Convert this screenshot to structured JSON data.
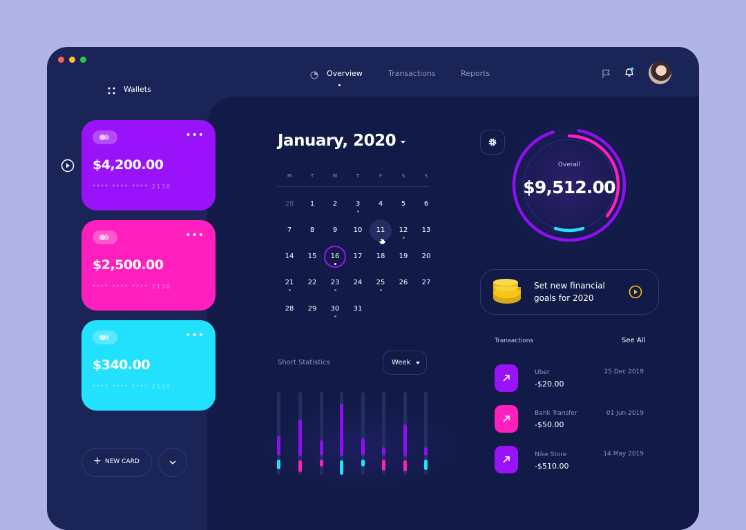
{
  "nav": {
    "wallets_label": "Wallets",
    "tabs": [
      {
        "label": "Overview",
        "active": true
      },
      {
        "label": "Transactions",
        "active": false
      },
      {
        "label": "Reports",
        "active": false
      }
    ]
  },
  "cards": [
    {
      "amount": "$4,200.00",
      "number": "**** **** **** 2130",
      "color": "#9a12f9"
    },
    {
      "amount": "$2,500.00",
      "number": "**** **** **** 2130",
      "color": "#ff1fbe"
    },
    {
      "amount": "$340.00",
      "number": "**** **** **** 2130",
      "color": "#22e1fc"
    }
  ],
  "new_card_label": "NEW CARD",
  "calendar": {
    "title": "January, 2020",
    "weekdays": [
      "M",
      "T",
      "W",
      "T",
      "F",
      "S",
      "S"
    ],
    "rows": [
      [
        "28",
        "1",
        "2",
        "3",
        "4",
        "5",
        "6"
      ],
      [
        "7",
        "8",
        "9",
        "10",
        "11",
        "12",
        "13"
      ],
      [
        "14",
        "15",
        "16",
        "17",
        "18",
        "19",
        "20"
      ],
      [
        "21",
        "22",
        "23",
        "24",
        "25",
        "26",
        "27"
      ],
      [
        "28",
        "29",
        "30",
        "31"
      ]
    ],
    "selected": "16",
    "hovered": "11"
  },
  "stats": {
    "title": "Short Statistics",
    "period": "Week"
  },
  "overall": {
    "label": "Overall",
    "amount": "$9,512.00"
  },
  "goal": {
    "line1": "Set new financial",
    "line2": "goals for 2020"
  },
  "transactions": {
    "title": "Transactions",
    "see_all": "See All",
    "items": [
      {
        "name": "Uber",
        "amount": "-$20.00",
        "date": "25 Dec 2019",
        "color": "#9a12f9"
      },
      {
        "name": "Bank Transfer",
        "amount": "-$50.00",
        "date": "01 Jun 2019",
        "color": "#ff1fbe"
      },
      {
        "name": "Nike Store",
        "amount": "-$510.00",
        "date": "14 May 2019",
        "color": "#9a12f9"
      }
    ]
  },
  "colors": {
    "purple": "#9a12f9",
    "pink": "#ff1fbe",
    "cyan": "#22e1fc",
    "gold": "#f5c518"
  }
}
